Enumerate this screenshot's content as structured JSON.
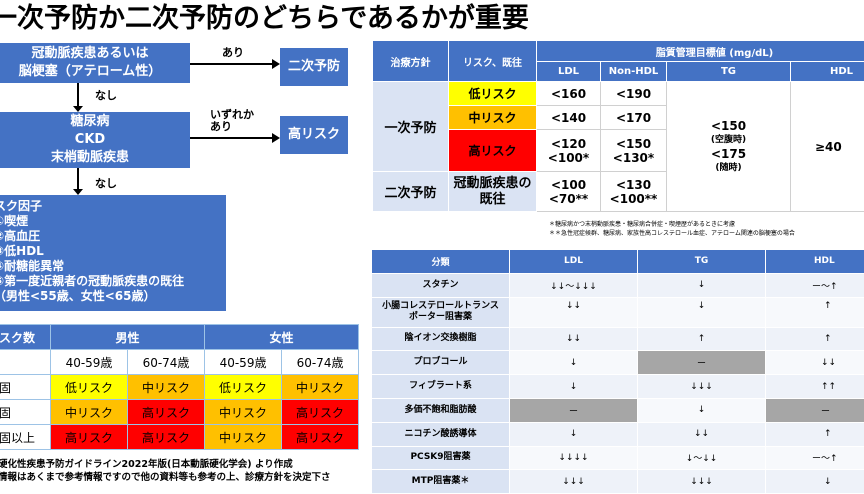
{
  "title": "一次予防か二次予防のどちらであるかが重要",
  "flow": {
    "box1": [
      "冠動脈疾患あるいは",
      "脳梗塞（アテローム性）"
    ],
    "yes1": "あり",
    "out1": "二次予防",
    "no1": "なし",
    "box2": [
      "糖尿病",
      "CKD",
      "末梢動脈疾患"
    ],
    "yes2": [
      "いずれか",
      "あり"
    ],
    "out2": "高リスク",
    "no2": "なし",
    "box3": [
      "スク因子",
      "①喫煙",
      "②高血圧",
      "③低HDL",
      "④耐糖能異常",
      "⑤第一度近親者の冠動脈疾患の既往",
      "（男性<55歳、女性<65歳）"
    ]
  },
  "risk_table": {
    "h_count": "スク数",
    "h_male": "男性",
    "h_female": "女性",
    "ages": [
      "40-59歳",
      "60-74歳",
      "40-59歳",
      "60-74歳"
    ],
    "rows": [
      {
        "label": "固",
        "cells": [
          "低リスク",
          "中リスク",
          "低リスク",
          "中リスク"
        ],
        "levels": [
          "low",
          "mid",
          "low",
          "mid"
        ]
      },
      {
        "label": "固",
        "cells": [
          "中リスク",
          "高リスク",
          "中リスク",
          "高リスク"
        ],
        "levels": [
          "mid",
          "high",
          "mid",
          "high"
        ]
      },
      {
        "label": "固以上",
        "cells": [
          "高リスク",
          "高リスク",
          "中リスク",
          "高リスク"
        ],
        "levels": [
          "high",
          "high",
          "mid",
          "high"
        ]
      }
    ]
  },
  "source_lines": [
    "硬化性疾患予防ガイドライン2022年版(日本動脈硬化学会) より作成",
    "情報はあくまで参考情報ですので他の資料等も参考の上、診療方針を決定下さ"
  ],
  "target_table": {
    "h_policy": "治療方針",
    "h_risk": "リスク、既往",
    "h_group": "脂質管理目標値 (mg/dL)",
    "cols": [
      "LDL",
      "Non-HDL",
      "TG",
      "HDL"
    ],
    "primary": "一次予防",
    "secondary": "二次予防",
    "r_low": "低リスク",
    "r_mid": "中リスク",
    "r_high": "高リスク",
    "r_sec": [
      "冠動脈疾患の",
      "既往"
    ],
    "ldl": [
      "<160",
      "<140",
      "<120",
      "<100*",
      "<100",
      "<70**"
    ],
    "nonhdl": [
      "<190",
      "<170",
      "<150",
      "<130*",
      "<130",
      "<100**"
    ],
    "tg": [
      "<150",
      "(空腹時)",
      "<175",
      "(随時)"
    ],
    "hdl": "≥40",
    "notes": [
      "＊糖尿病かつ末梢動脈疾患・糖尿病合併症・喫煙歴があるときに考慮",
      "＊＊急性冠症候群、糖尿病、家族性高コレステロール血症、アテローム関連の脳梗塞の場合"
    ]
  },
  "drug_table": {
    "headers": [
      "分類",
      "LDL",
      "TG",
      "HDL"
    ],
    "rows": [
      {
        "name": "スタチン",
        "ldl": "↓↓〜↓↓↓",
        "tg": "↓",
        "hdl": "ー〜↑"
      },
      {
        "name": "小腸コレステロールトランスポーター阻害薬",
        "ldl": "↓↓",
        "tg": "↓",
        "hdl": "↑"
      },
      {
        "name": "陰イオン交換樹脂",
        "ldl": "↓↓",
        "tg": "↑",
        "hdl": "↑"
      },
      {
        "name": "プロブコール",
        "ldl": "↓",
        "tg": "ー",
        "hdl": "↓↓"
      },
      {
        "name": "フィブラート系",
        "ldl": "↓",
        "tg": "↓↓↓",
        "hdl": "↑↑"
      },
      {
        "name": "多価不飽和脂肪酸",
        "ldl": "ー",
        "tg": "↓",
        "hdl": "ー"
      },
      {
        "name": "ニコチン酸誘導体",
        "ldl": "↓",
        "tg": "↓↓",
        "hdl": "↑"
      },
      {
        "name": "PCSK9阻害薬",
        "ldl": "↓↓↓↓",
        "tg": "↓〜↓↓",
        "hdl": "ー〜↑"
      },
      {
        "name": "MTP阻害薬＊",
        "ldl": "↓↓↓",
        "tg": "↓↓↓",
        "hdl": "↓"
      }
    ]
  }
}
